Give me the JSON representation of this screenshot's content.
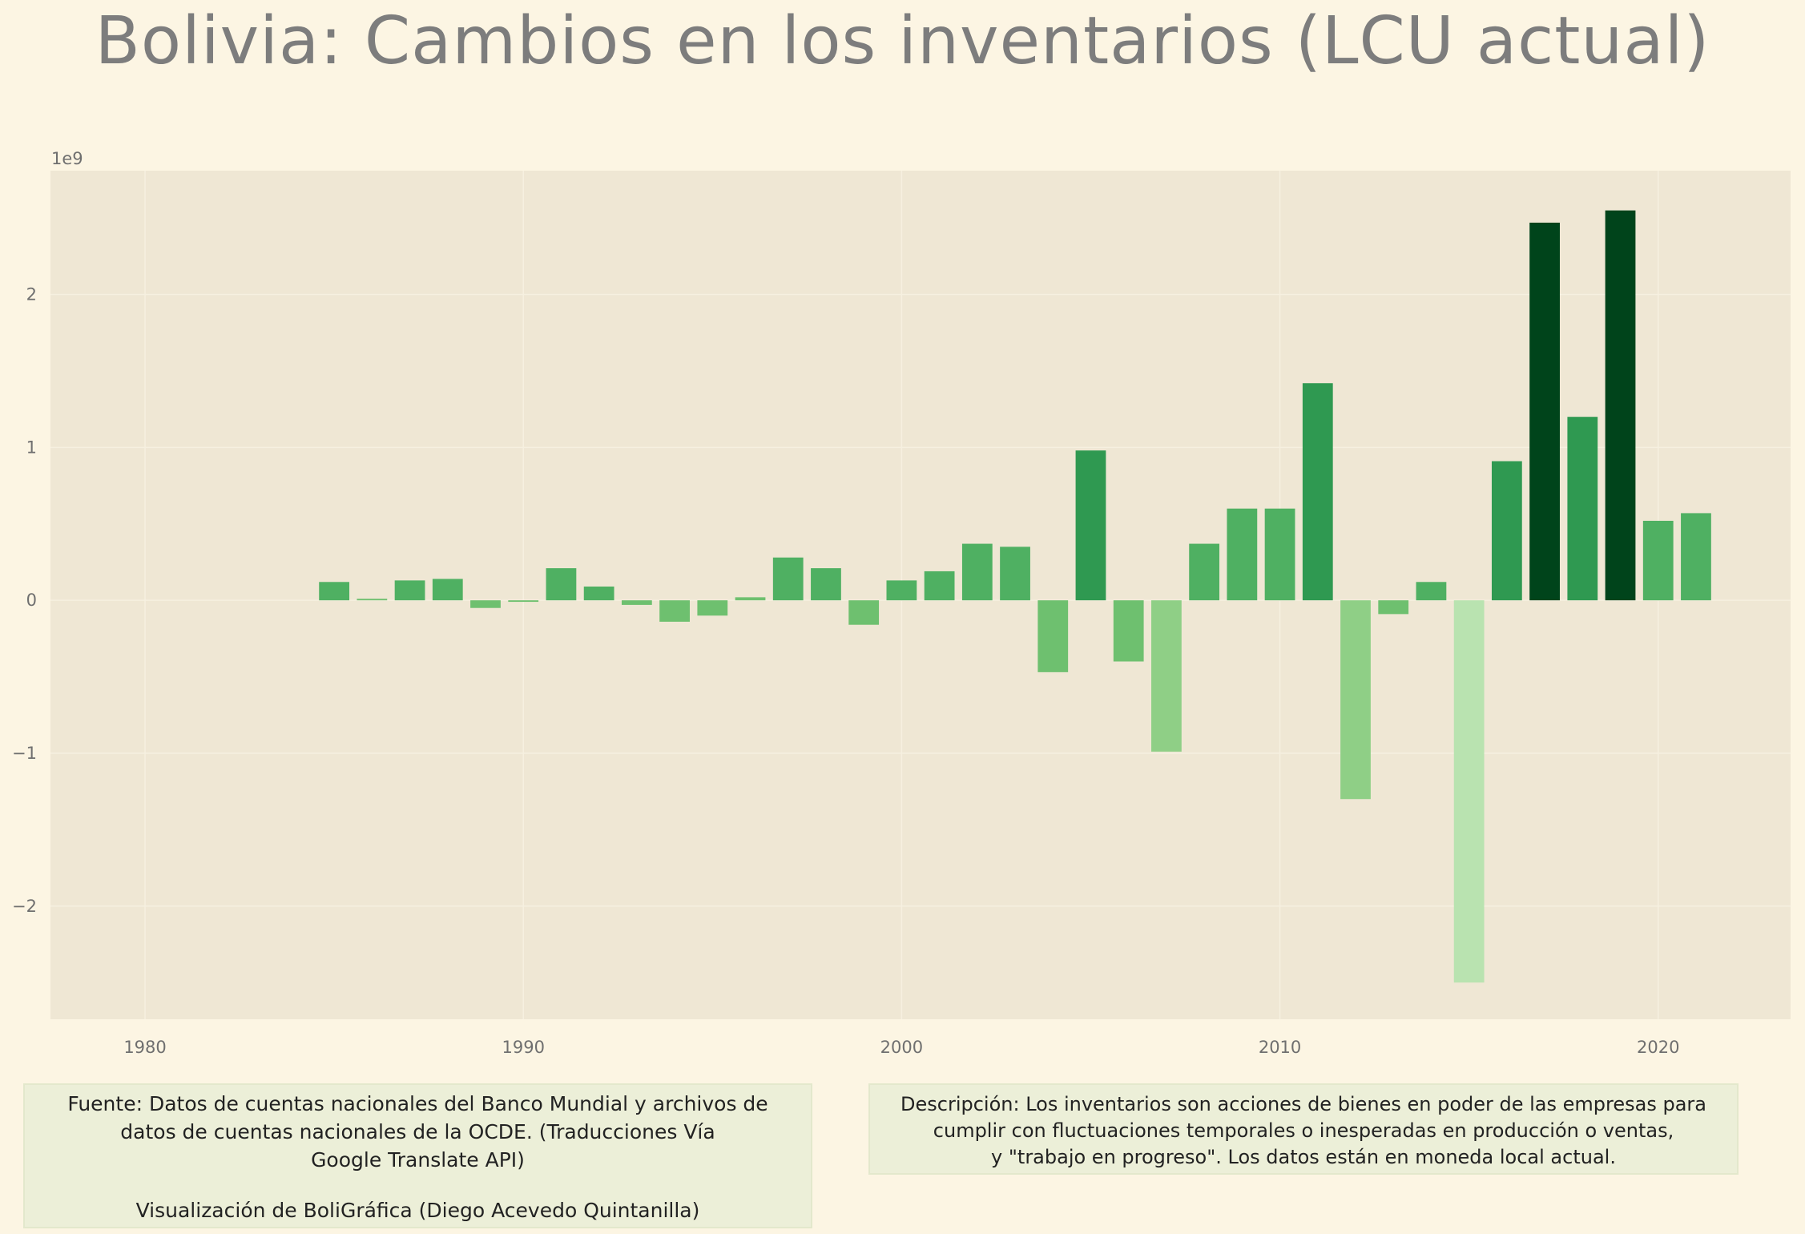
{
  "chart_data": {
    "type": "bar",
    "title": "Bolivia:  Cambios en los inventarios (LCU actual)",
    "xlabel": "",
    "ylabel": "",
    "y_scale_label": "1e9",
    "x": [
      1985,
      1986,
      1987,
      1988,
      1989,
      1990,
      1991,
      1992,
      1993,
      1994,
      1995,
      1996,
      1997,
      1998,
      1999,
      2000,
      2001,
      2002,
      2003,
      2004,
      2005,
      2006,
      2007,
      2008,
      2009,
      2010,
      2011,
      2012,
      2013,
      2014,
      2015,
      2016,
      2017,
      2018,
      2019,
      2020,
      2021
    ],
    "values": [
      0.12,
      0.01,
      0.13,
      0.14,
      -0.05,
      -0.01,
      0.21,
      0.09,
      -0.03,
      -0.14,
      -0.1,
      0.02,
      0.28,
      0.21,
      -0.16,
      0.13,
      0.19,
      0.37,
      0.35,
      -0.47,
      0.98,
      -0.4,
      -0.99,
      0.37,
      0.6,
      0.6,
      1.42,
      -1.3,
      -0.09,
      0.12,
      -2.5,
      0.91,
      2.47,
      1.2,
      2.55,
      0.52,
      0.57
    ],
    "xlim": [
      1977.5,
      2023.5
    ],
    "ylim": [
      -2.74,
      2.81
    ],
    "x_ticks": [
      1980,
      1990,
      2000,
      2010,
      2020
    ],
    "x_tick_labels": [
      "1980",
      "1990",
      "2000",
      "2010",
      "2020"
    ],
    "y_ticks": [
      -2,
      -1,
      0,
      1,
      2
    ],
    "y_tick_labels": [
      "−2",
      "−1",
      "0",
      "1",
      "2"
    ],
    "colors": {
      "plot_background": "#efe7d4",
      "page_background": "#fcf5e3",
      "color_scale": [
        "#b9e3b0",
        "#a7dc9a",
        "#8fcf86",
        "#6ec06f",
        "#4fb062",
        "#2f9951",
        "#137a3b",
        "#00441b"
      ]
    },
    "grid": true,
    "legend": "none"
  },
  "footer": {
    "source_lines": [
      "Fuente: Datos de cuentas nacionales del Banco Mundial y archivos de",
      "datos de cuentas nacionales de la OCDE. (Traducciones Vía",
      "Google Translate API)"
    ],
    "credit": "Visualización de BoliGráfica (Diego Acevedo Quintanilla)",
    "description_lines": [
      "Descripción: Los inventarios son acciones de bienes en poder de las empresas para",
      "cumplir con fluctuaciones temporales o inesperadas en producción o ventas,",
      "y \"trabajo en progreso\". Los datos están en moneda local actual."
    ]
  }
}
